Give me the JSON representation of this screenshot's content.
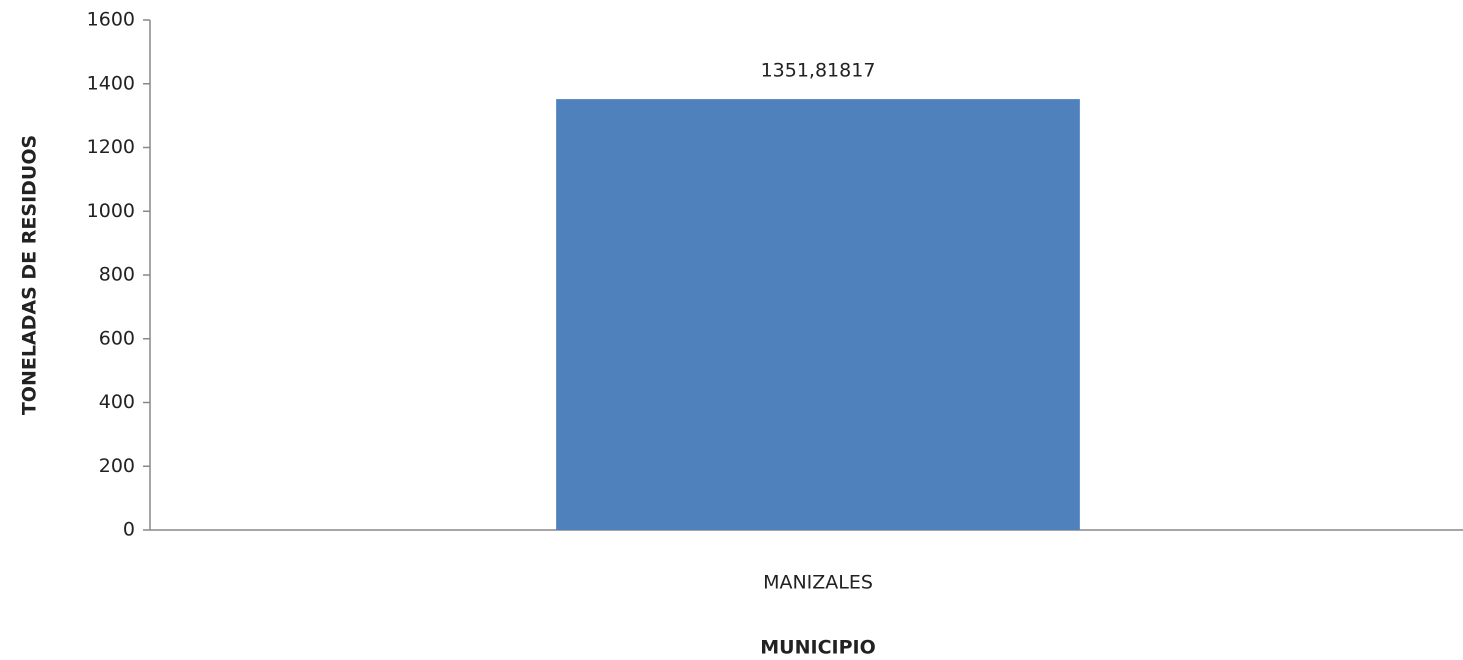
{
  "chart_data": {
    "type": "bar",
    "categories": [
      "MANIZALES"
    ],
    "values": [
      1351.81817
    ],
    "value_labels": [
      "1351,81817"
    ],
    "color": "#4f81bd",
    "xlabel": "MUNICIPIO",
    "ylabel": "TONELADAS DE RESIDUOS",
    "ylim": [
      0,
      1600
    ],
    "yticks": [
      0,
      200,
      400,
      600,
      800,
      1000,
      1200,
      1400,
      1600
    ],
    "grid": false
  }
}
